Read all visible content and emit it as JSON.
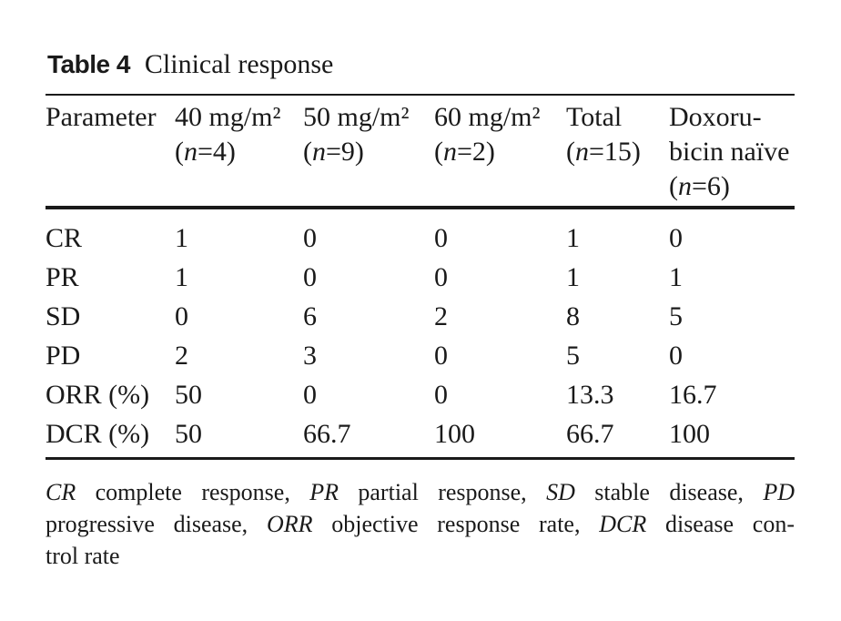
{
  "title": {
    "label": "Table 4",
    "caption": "Clinical response"
  },
  "table": {
    "columns": [
      {
        "name": "Parameter"
      },
      {
        "line1": "40 mg/m²",
        "n_pre": "(",
        "n": "n",
        "n_post": "=4)"
      },
      {
        "line1": "50 mg/m²",
        "n_pre": "(",
        "n": "n",
        "n_post": "=9)"
      },
      {
        "line1": "60 mg/m²",
        "n_pre": "(",
        "n": "n",
        "n_post": "=2)"
      },
      {
        "line1": "Total",
        "n_pre": "(",
        "n": "n",
        "n_post": "=15)"
      },
      {
        "line1": "Doxoru-",
        "line2": "bicin naïve",
        "n_pre": "(",
        "n": "n",
        "n_post": "=6)"
      }
    ],
    "rows": [
      {
        "label": "CR",
        "values": [
          "1",
          "0",
          "0",
          "1",
          "0"
        ]
      },
      {
        "label": "PR",
        "values": [
          "1",
          "0",
          "0",
          "1",
          "1"
        ]
      },
      {
        "label": "SD",
        "values": [
          "0",
          "6",
          "2",
          "8",
          "5"
        ]
      },
      {
        "label": "PD",
        "values": [
          "2",
          "3",
          "0",
          "5",
          "0"
        ]
      },
      {
        "label": "ORR (%)",
        "values": [
          "50",
          "0",
          "0",
          "13.3",
          "16.7"
        ]
      },
      {
        "label": "DCR (%)",
        "values": [
          "50",
          "66.7",
          "100",
          "66.7",
          "100"
        ]
      }
    ]
  },
  "footnote": {
    "lines": [
      [
        "CR",
        " complete response, ",
        "PR",
        " partial response, ",
        "SD",
        " stable disease, ",
        "PD"
      ],
      [
        "progressive disease, ",
        "ORR",
        " objective response rate, ",
        "DCR",
        " disease con-"
      ],
      [
        "trol rate"
      ]
    ]
  },
  "colors": {
    "text": "#1a1a1a",
    "background": "#ffffff",
    "rule": "#1a1a1a"
  }
}
